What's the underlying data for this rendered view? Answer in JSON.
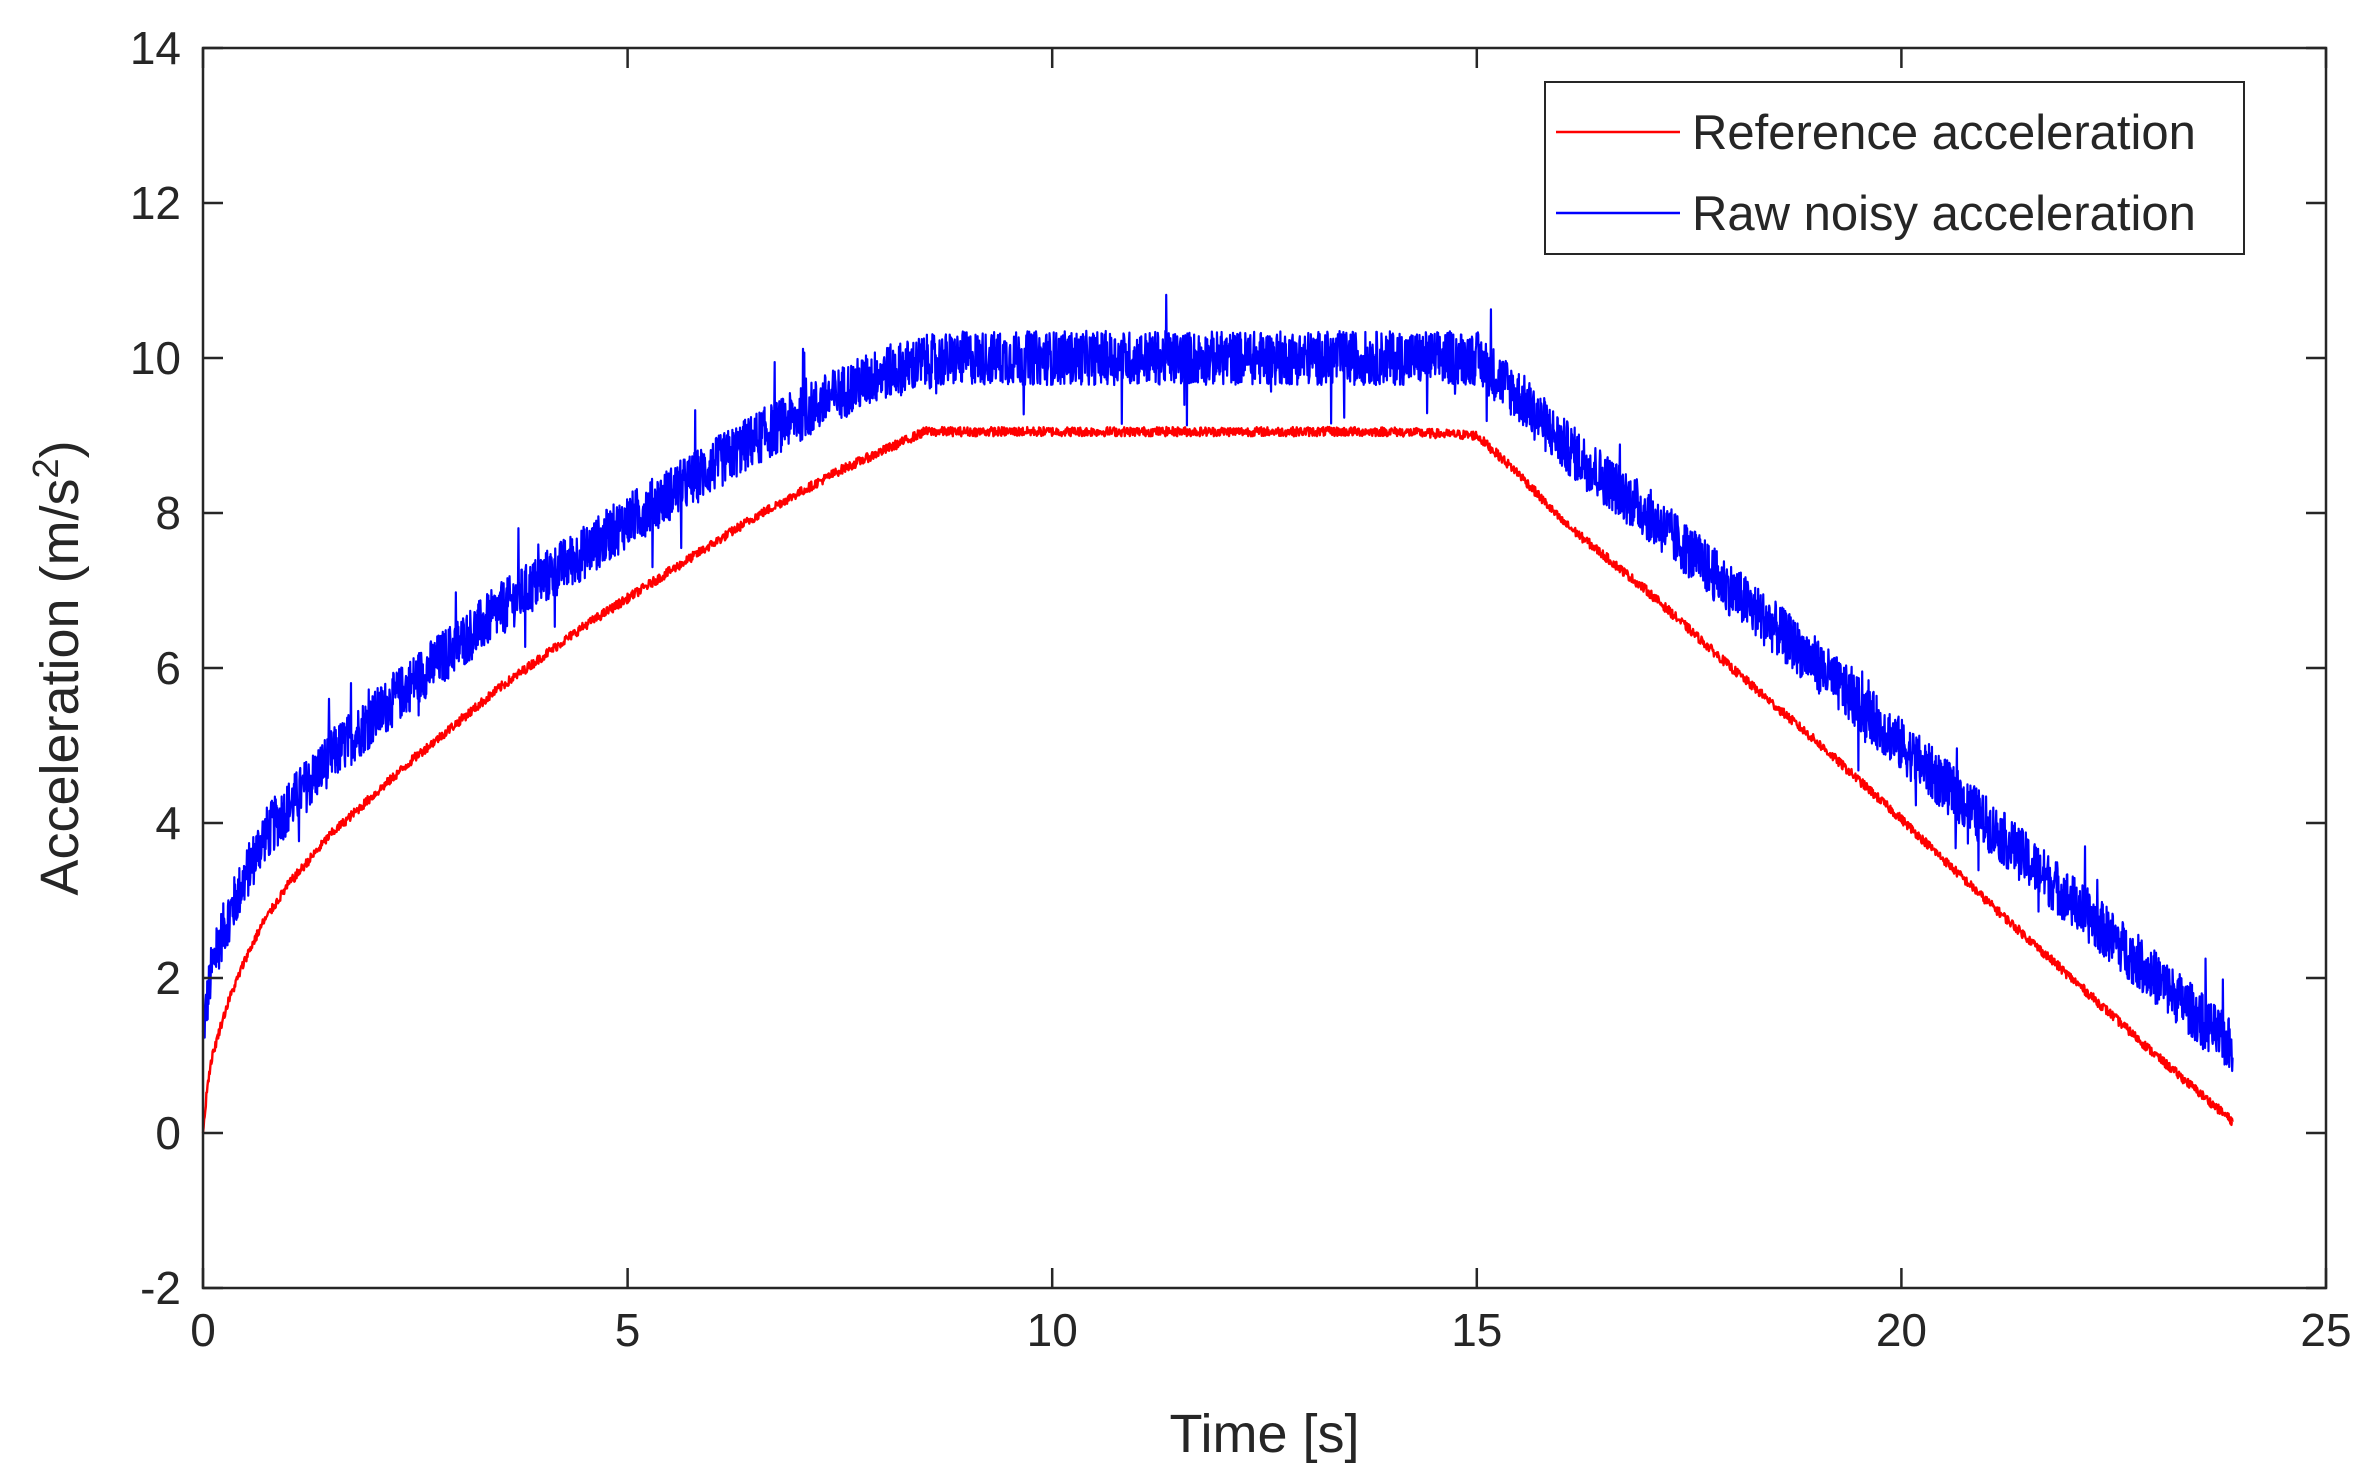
{
  "chart_data": {
    "type": "line",
    "title": "",
    "xlabel": "Time [s]",
    "ylabel": {
      "prefix": "Acceleration (m/s",
      "superscript": "2",
      "suffix": ")"
    },
    "xlim": [
      0,
      25
    ],
    "ylim": [
      -2,
      14
    ],
    "xticks": [
      0,
      5,
      10,
      15,
      20,
      25
    ],
    "xtick_labels": [
      "0",
      "5",
      "10",
      "15",
      "20",
      "25"
    ],
    "yticks": [
      -2,
      0,
      2,
      4,
      6,
      8,
      10,
      12,
      14
    ],
    "ytick_labels": [
      "-2",
      "0",
      "2",
      "4",
      "6",
      "8",
      "10",
      "12",
      "14"
    ],
    "grid": false,
    "box": true,
    "legend_position": "top-right",
    "series": [
      {
        "name": "Reference acceleration",
        "color": "#ff0000",
        "noise_amplitude": 0.06,
        "x": [
          0,
          0.05,
          0.1,
          0.2,
          0.3,
          0.5,
          0.7,
          1,
          1.5,
          2,
          2.5,
          3,
          3.5,
          4,
          4.5,
          5,
          5.5,
          6,
          6.5,
          7,
          7.5,
          8,
          8.5,
          9,
          9.3,
          10,
          11,
          12,
          13,
          14,
          15,
          15.5,
          16,
          17,
          18,
          19,
          20,
          21,
          22,
          23,
          23.9
        ],
        "y": [
          0,
          0.6,
          0.95,
          1.35,
          1.7,
          2.25,
          2.7,
          3.2,
          3.85,
          4.35,
          4.85,
          5.3,
          5.75,
          6.15,
          6.55,
          6.9,
          7.25,
          7.6,
          7.95,
          8.25,
          8.55,
          8.8,
          9.05,
          9.05,
          9.05,
          9.05,
          9.05,
          9.05,
          9.05,
          9.05,
          9.0,
          8.5,
          7.9,
          7.0,
          6.0,
          5.05,
          4.05,
          3.0,
          2.0,
          1.0,
          0.15
        ]
      },
      {
        "name": "Raw noisy acceleration",
        "color": "#0000ff",
        "noise_amplitude": 0.35,
        "x": [
          0,
          0.05,
          0.1,
          0.2,
          0.3,
          0.5,
          0.7,
          1,
          1.5,
          2,
          2.5,
          3,
          3.5,
          4,
          4.5,
          5,
          5.5,
          6,
          6.5,
          7,
          7.5,
          8,
          8.5,
          9,
          9.3,
          10,
          11,
          12,
          13,
          14,
          15,
          15.5,
          16,
          17,
          18,
          19,
          20,
          21,
          22,
          23,
          23.9
        ],
        "y": [
          1.3,
          1.7,
          2.1,
          2.5,
          2.8,
          3.3,
          3.8,
          4.2,
          4.85,
          5.35,
          5.85,
          6.3,
          6.75,
          7.15,
          7.5,
          7.9,
          8.25,
          8.6,
          8.95,
          9.25,
          9.55,
          9.8,
          9.95,
          10.0,
          10.0,
          10.0,
          10.0,
          10.0,
          10.0,
          10.0,
          10.0,
          9.5,
          8.9,
          8.0,
          7.0,
          6.05,
          5.0,
          4.0,
          3.0,
          2.0,
          1.1
        ]
      }
    ]
  }
}
